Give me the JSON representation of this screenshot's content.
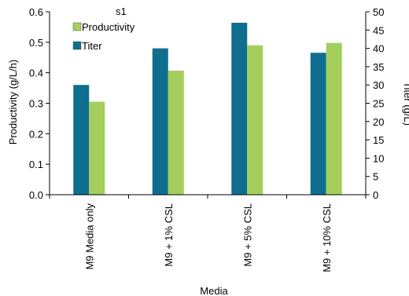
{
  "chart_data": {
    "type": "bar",
    "title": "s1",
    "categories": [
      "M9 Media only",
      "M9 + 1% CSL",
      "M9 + 5% CSL",
      "M9 + 10% CSL"
    ],
    "series": [
      {
        "name": "Titer",
        "axis": "right",
        "values": [
          30,
          40,
          47,
          38.8
        ],
        "color": "#0f6e8f"
      },
      {
        "name": "Productivity",
        "axis": "left",
        "values": [
          0.305,
          0.407,
          0.49,
          0.498
        ],
        "color": "#a4cf5d"
      }
    ],
    "legend_order": [
      "Productivity",
      "Titer"
    ],
    "xlabel": "Media",
    "ylabel": "Productivity (g/L/h)",
    "y2label": "Titer (g/L)",
    "ylim": [
      0,
      0.6
    ],
    "y2lim": [
      0,
      50
    ],
    "yticks": [
      "0.0",
      "0.1",
      "0.2",
      "0.3",
      "0.4",
      "0.5",
      "0.6"
    ],
    "y2ticks": [
      "0",
      "5",
      "10",
      "15",
      "20",
      "25",
      "30",
      "35",
      "40",
      "45",
      "50"
    ],
    "legend_position": "top-left",
    "grid": false
  }
}
